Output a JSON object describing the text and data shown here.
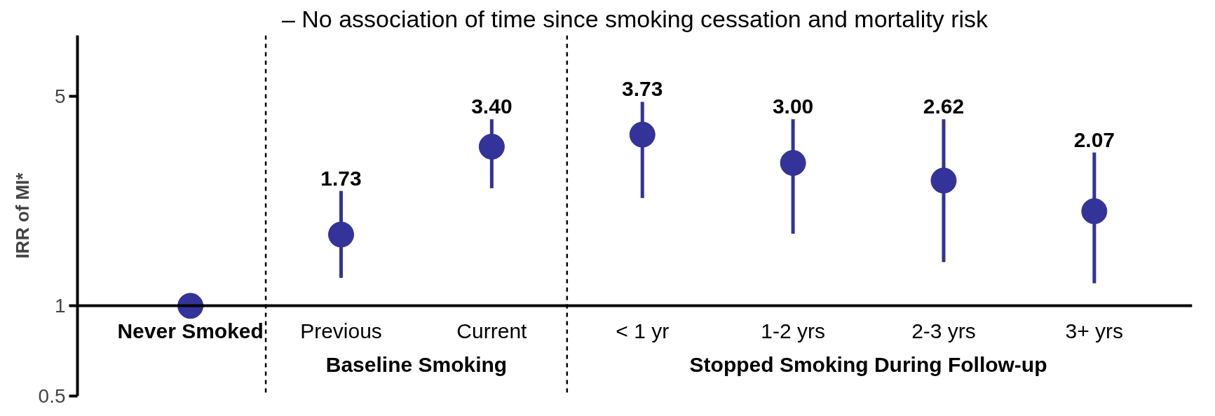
{
  "chart_data": {
    "type": "scatter",
    "title": "– No association of time since smoking cessation and mortality risk",
    "ylabel": "IRR of MI*",
    "categories": [
      "Never Smoked",
      "Previous",
      "Current",
      "< 1 yr",
      "1-2 yrs",
      "2-3 yrs",
      "3+ yrs"
    ],
    "values": [
      1,
      1.73,
      3.4,
      3.73,
      3.0,
      2.62,
      2.07
    ],
    "value_labels": [
      null,
      "1.73",
      "3.40",
      "3.73",
      "3.00",
      "2.62",
      "2.07"
    ],
    "errors": [
      null,
      [
        1.24,
        2.42
      ],
      [
        2.47,
        4.2
      ],
      [
        2.29,
        4.8
      ],
      [
        1.74,
        4.2
      ],
      [
        1.4,
        4.2
      ],
      [
        1.19,
        3.25
      ]
    ],
    "color": "#333399",
    "marker": "circle",
    "log": true,
    "ylim": [
      0.5,
      8
    ],
    "yticks": [
      0.5,
      1,
      5
    ],
    "grid": false,
    "annotations": [
      "Baseline Smoking",
      "Stopped Smoking During Follow-up"
    ]
  }
}
